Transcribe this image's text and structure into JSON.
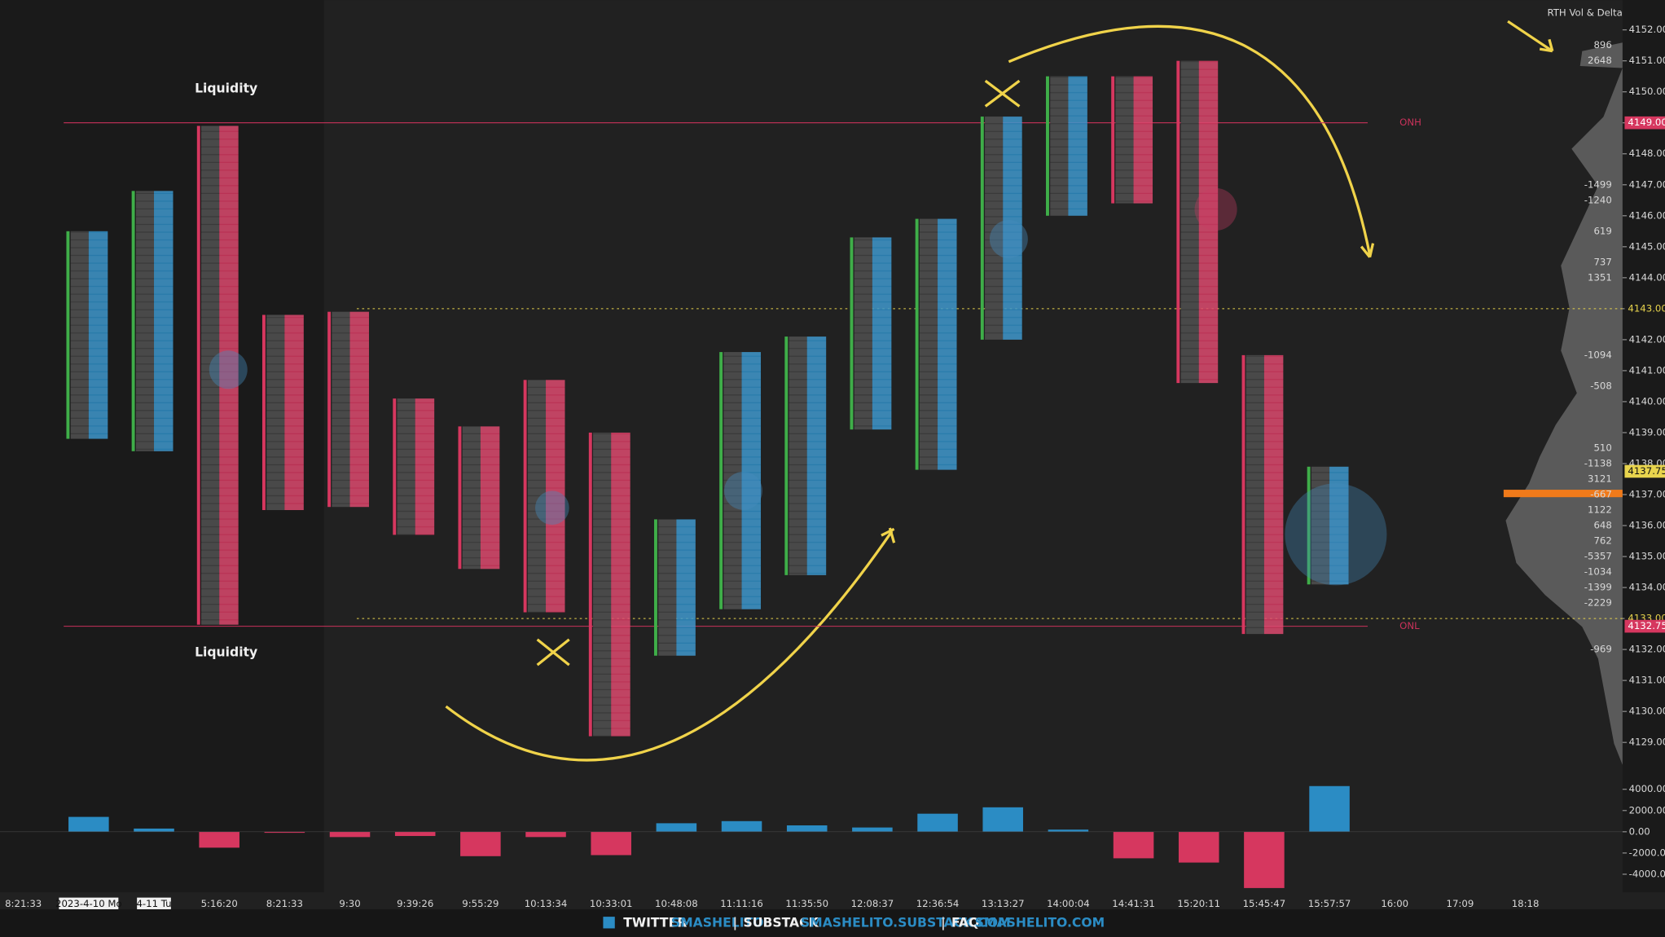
{
  "chart_data": {
    "type": "footprint",
    "panel_title": "RTH Vol & Delta",
    "categories": [
      "8:21:33",
      "2023-4-10 Mo",
      "4-11 Tu",
      "5:16:20",
      "8:21:33",
      "9:30",
      "9:39:26",
      "9:55:29",
      "10:13:34",
      "10:33:01",
      "10:48:08",
      "11:11:16",
      "11:35:50",
      "12:08:37",
      "12:36:54",
      "13:13:27",
      "14:00:04",
      "14:41:31",
      "15:20:11",
      "15:45:47",
      "15:57:57",
      "16:00",
      "17:09",
      "18:18"
    ],
    "high": [
      null,
      4145.5,
      4146.8,
      4148.9,
      4142.8,
      4142.9,
      4140.1,
      4139.2,
      4140.7,
      4139.0,
      4136.2,
      4141.6,
      4142.1,
      4145.3,
      4145.9,
      4149.2,
      4150.5,
      4150.5,
      4151.0,
      4141.5,
      4137.9,
      null,
      null,
      null
    ],
    "low": [
      null,
      4138.8,
      4138.4,
      4132.8,
      4136.5,
      4136.6,
      4135.7,
      4134.6,
      4133.2,
      4129.2,
      4131.8,
      4133.3,
      4134.4,
      4139.1,
      4137.8,
      4142.0,
      4146.0,
      4146.4,
      4140.6,
      4132.5,
      4134.1,
      null,
      null,
      null
    ],
    "delta": [
      null,
      1400,
      300,
      -1500,
      -100,
      -500,
      -400,
      -2300,
      -500,
      -2200,
      800,
      1000,
      600,
      400,
      1700,
      2300,
      200,
      -2500,
      -2900,
      -5300,
      4300,
      null,
      null,
      null
    ],
    "up_color": "#2b8cc4",
    "down_color": "#d6375f",
    "ylim": [
      4128.3,
      4153
    ],
    "yticks": [
      {
        "value": 4129,
        "label": "4129.00"
      },
      {
        "value": 4130,
        "label": "4130.00"
      },
      {
        "value": 4131,
        "label": "4131.00"
      },
      {
        "value": 4132,
        "label": "4132.00"
      },
      {
        "value": 4133,
        "label": "4133.00"
      },
      {
        "value": 4134,
        "label": "4134.00"
      },
      {
        "value": 4135,
        "label": "4135.00"
      },
      {
        "value": 4136,
        "label": "4136.00"
      },
      {
        "value": 4137,
        "label": "4137.00"
      },
      {
        "value": 4138,
        "label": "4138.00"
      },
      {
        "value": 4139,
        "label": "4139.00"
      },
      {
        "value": 4140,
        "label": "4140.00"
      },
      {
        "value": 4141,
        "label": "4141.00"
      },
      {
        "value": 4142,
        "label": "4142.00"
      },
      {
        "value": 4143,
        "label": "4143.00"
      },
      {
        "value": 4144,
        "label": "4144.00"
      },
      {
        "value": 4145,
        "label": "4145.00"
      },
      {
        "value": 4146,
        "label": "4146.00"
      },
      {
        "value": 4147,
        "label": "4147.00"
      },
      {
        "value": 4148,
        "label": "4148.00"
      },
      {
        "value": 4149,
        "label": "4149.00"
      },
      {
        "value": 4150,
        "label": "4150.00"
      },
      {
        "value": 4151,
        "label": "4151.00"
      },
      {
        "value": 4152,
        "label": "4152.00"
      }
    ],
    "delta_ylim": [
      -5700,
      4600
    ],
    "delta_ticks": [
      {
        "value": 4000,
        "label": "4000.00"
      },
      {
        "value": 2000,
        "label": "2000.00"
      },
      {
        "value": 0,
        "label": "0.00"
      },
      {
        "value": -2000,
        "label": "-2000.00"
      },
      {
        "value": -4000,
        "label": "-4000.00"
      }
    ],
    "levels": [
      {
        "label": "ONH",
        "value": 4149,
        "color": "#c8325a"
      },
      {
        "label": "ONL",
        "value": 4132.75,
        "color": "#c8325a"
      }
    ],
    "price_markers": [
      {
        "value": 4149,
        "label": "4149.00",
        "color": "#d6375f",
        "dotted": false
      },
      {
        "value": 4143,
        "label": "4143.00",
        "color": "#e8d44d",
        "dotted": true
      },
      {
        "value": 4137.75,
        "label": "4137.75",
        "color": "#e8d44d",
        "dotted": false
      },
      {
        "value": 4133,
        "label": "4133.00",
        "color": "#e8d44d",
        "dotted": true
      },
      {
        "value": 4132.75,
        "label": "4132.75",
        "color": "#d6375f",
        "dotted": false
      }
    ],
    "annotations": [
      {
        "text": "Liquidity",
        "price": 4150.1
      },
      {
        "text": "Liquidity",
        "price": 4131.9
      }
    ],
    "profile": [
      {
        "price": 4151.5,
        "value": 896
      },
      {
        "price": 4151,
        "value": 2648
      },
      {
        "price": 4147,
        "value": -1499
      },
      {
        "price": 4146.5,
        "value": -1240
      },
      {
        "price": 4145.5,
        "value": 619
      },
      {
        "price": 4144.5,
        "value": 737
      },
      {
        "price": 4144,
        "value": 1351
      },
      {
        "price": 4141.5,
        "value": -1094
      },
      {
        "price": 4140.5,
        "value": -508
      },
      {
        "price": 4138.5,
        "value": 510
      },
      {
        "price": 4138,
        "value": -1138
      },
      {
        "price": 4137.5,
        "value": 3121
      },
      {
        "price": 4137,
        "value": -667
      },
      {
        "price": 4136.5,
        "value": 1122
      },
      {
        "price": 4136,
        "value": 648
      },
      {
        "price": 4135.5,
        "value": 762
      },
      {
        "price": 4135,
        "value": -5357
      },
      {
        "price": 4134.5,
        "value": -1034
      },
      {
        "price": 4134,
        "value": -1399
      },
      {
        "price": 4133.5,
        "value": -2229
      },
      {
        "price": 4132,
        "value": -969
      }
    ]
  },
  "footer": {
    "items": [
      "TWITTER",
      "SMASHELITO",
      "SUBSTACK",
      "SMASHELITO.SUBSTACK.COM",
      "FAQ",
      "SMASHELITO.COM"
    ]
  }
}
